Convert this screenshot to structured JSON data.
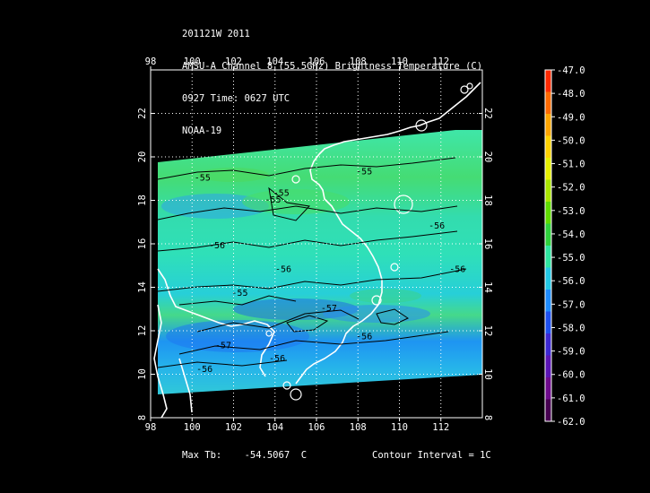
{
  "header": {
    "line1": "201121W 2011",
    "line2": "AMSU-A Channel 8 (55.5GHz) Brightness Temperature (C)",
    "line3": "0927 Time: 0627 UTC",
    "line4": "NOAA-19"
  },
  "map": {
    "lon_range": [
      98,
      114
    ],
    "lat_range": [
      8,
      24
    ],
    "lon_ticks": [
      "98",
      "100",
      "102",
      "104",
      "106",
      "108",
      "110",
      "112"
    ],
    "lat_ticks": [
      "8",
      "10",
      "12",
      "14",
      "16",
      "18",
      "20",
      "22"
    ],
    "contour_labels": [
      {
        "text": "-55",
        "lon": 100.5,
        "lat": 18.9
      },
      {
        "text": "-55",
        "lon": 103.9,
        "lat": 17.9
      },
      {
        "text": "-55",
        "lon": 104.3,
        "lat": 18.2
      },
      {
        "text": "-55",
        "lon": 108.3,
        "lat": 19.2
      },
      {
        "text": "-56",
        "lon": 101.2,
        "lat": 15.8
      },
      {
        "text": "-56",
        "lon": 104.4,
        "lat": 14.7
      },
      {
        "text": "-56",
        "lon": 111.8,
        "lat": 16.7
      },
      {
        "text": "-56",
        "lon": 112.8,
        "lat": 14.7
      },
      {
        "text": "-55",
        "lon": 102.3,
        "lat": 13.6
      },
      {
        "text": "-57",
        "lon": 106.6,
        "lat": 12.9
      },
      {
        "text": "-57",
        "lon": 101.5,
        "lat": 11.2
      },
      {
        "text": "-56",
        "lon": 108.3,
        "lat": 11.6
      },
      {
        "text": "-56",
        "lon": 104.1,
        "lat": 10.6
      },
      {
        "text": "-56",
        "lon": 100.6,
        "lat": 10.1
      }
    ]
  },
  "colorbar": {
    "labels": [
      "-47.0",
      "-48.0",
      "-49.0",
      "-50.0",
      "-51.0",
      "-52.0",
      "-53.0",
      "-54.0",
      "-55.0",
      "-56.0",
      "-57.0",
      "-58.0",
      "-59.0",
      "-60.0",
      "-61.0",
      "-62.0"
    ],
    "colors": [
      "#ff2a00",
      "#ff6a00",
      "#ffa500",
      "#ffd200",
      "#e6f000",
      "#a9e600",
      "#5fdc00",
      "#2ed23c",
      "#2ee6a0",
      "#22c8e6",
      "#1e8cff",
      "#1e50f0",
      "#3c28d2",
      "#5a14b4",
      "#6e0a8c",
      "#460050"
    ]
  },
  "footer": {
    "max_tb_label": "Max Tb:",
    "max_tb_value": "-54.5067",
    "max_tb_unit": "C",
    "contour_interval": "Contour Interval = 1C"
  }
}
